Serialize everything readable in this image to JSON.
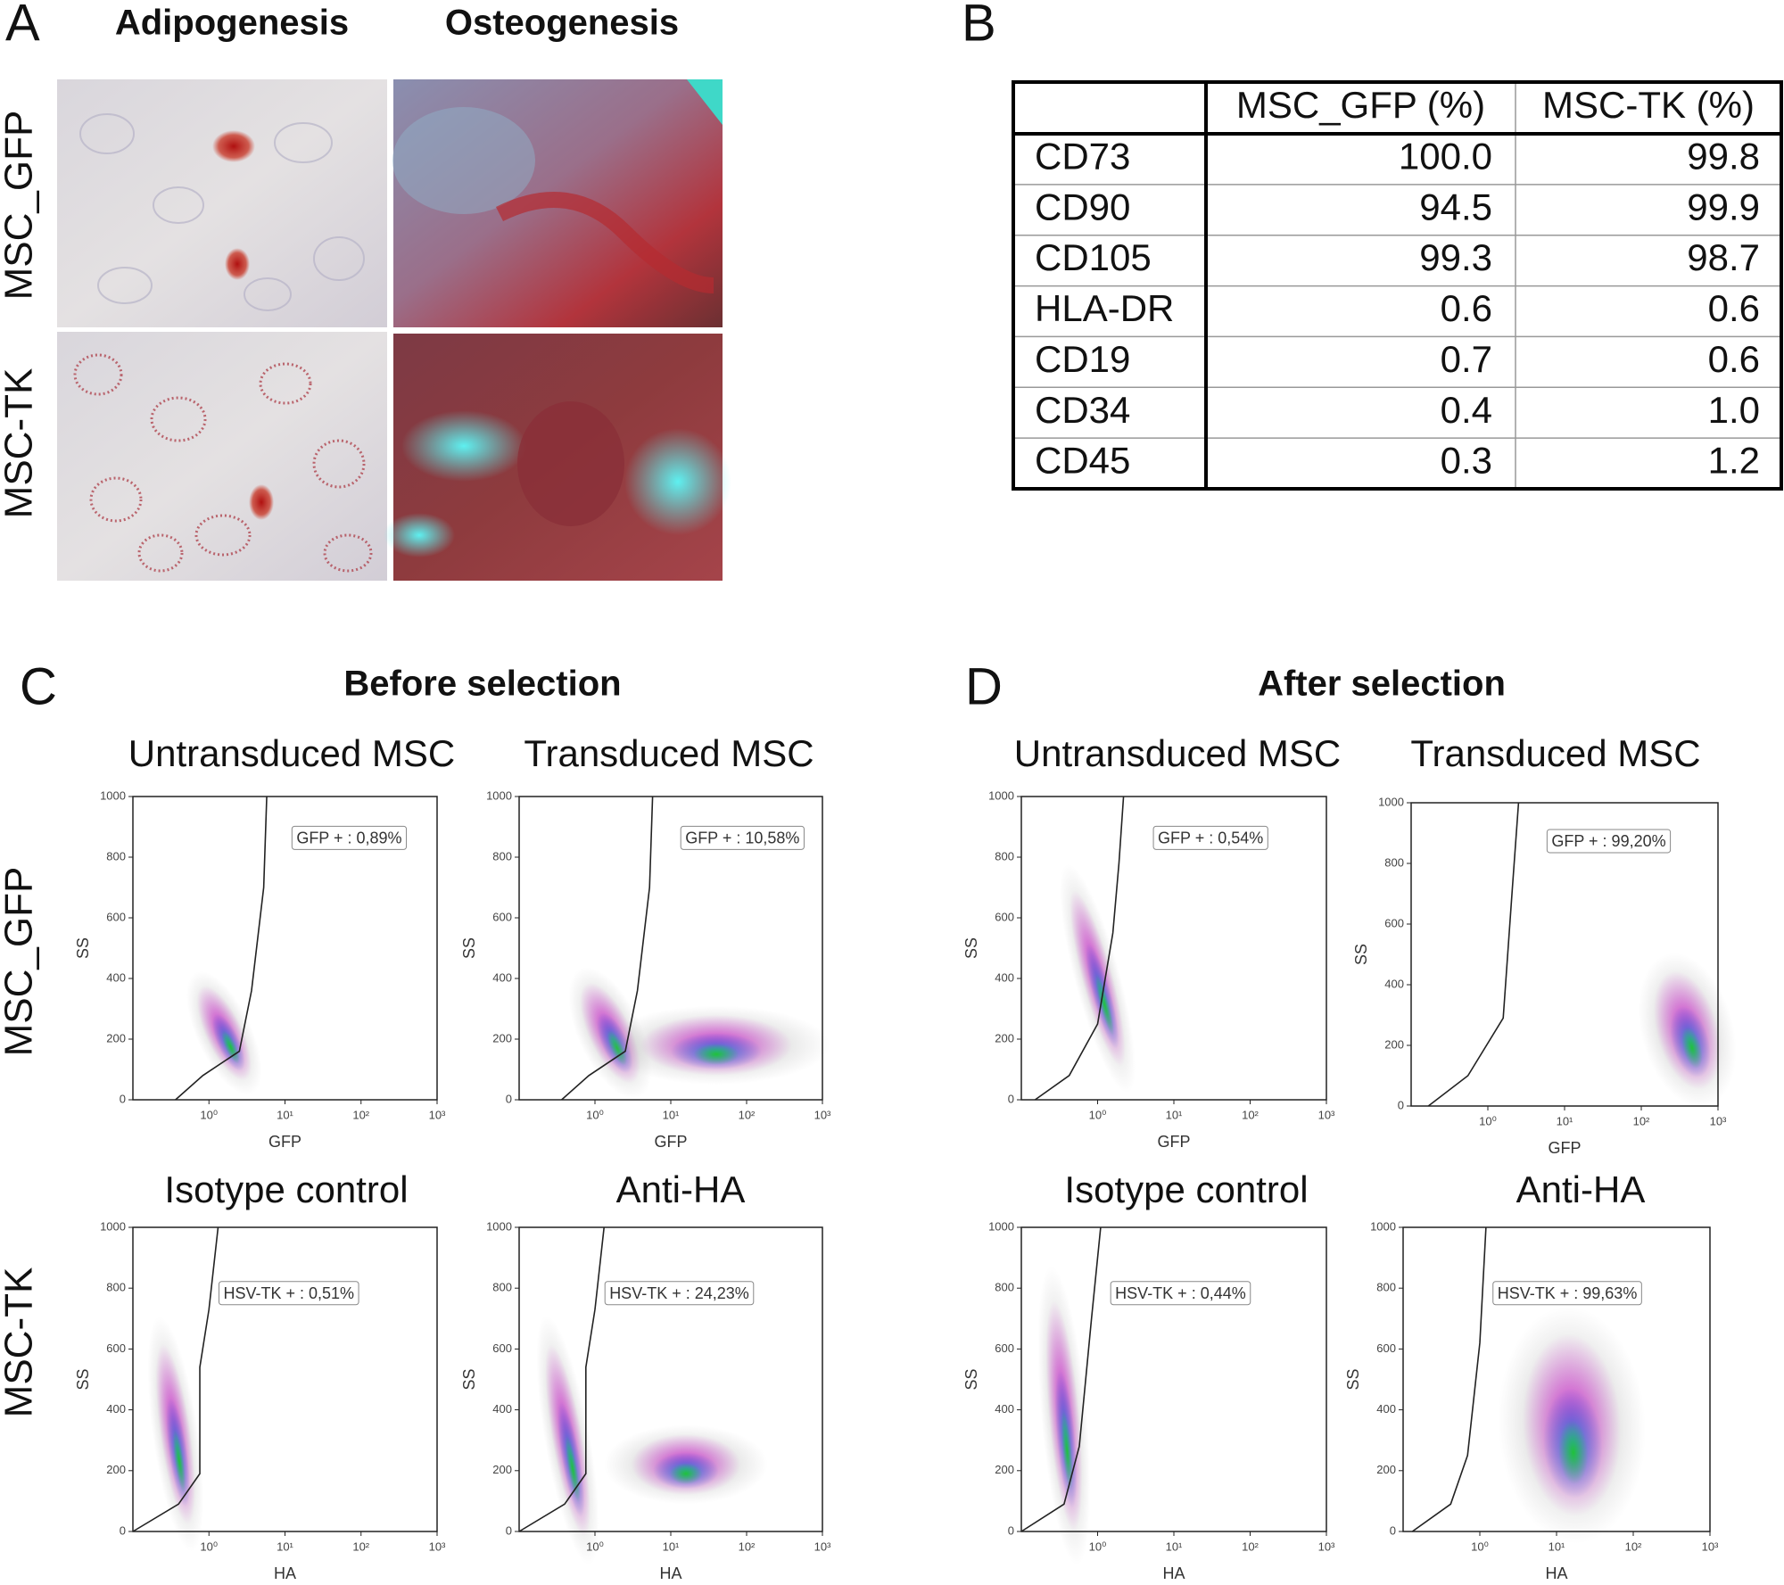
{
  "panel_a": {
    "label": "A",
    "columns": [
      "Adipogenesis",
      "Osteogenesis"
    ],
    "rows": [
      "MSC_GFP",
      "MSC-TK"
    ]
  },
  "panel_b": {
    "label": "B",
    "table": {
      "header": [
        "MSC_GFP (%)",
        "MSC-TK (%)"
      ],
      "rows": [
        [
          "CD73",
          "100.0",
          "99.8"
        ],
        [
          "CD90",
          "94.5",
          "99.9"
        ],
        [
          "CD105",
          "99.3",
          "98.7"
        ],
        [
          "HLA-DR",
          "0.6",
          "0.6"
        ],
        [
          "CD19",
          "0.7",
          "0.6"
        ],
        [
          "CD34",
          "0.4",
          "1.0"
        ],
        [
          "CD45",
          "0.3",
          "1.2"
        ]
      ]
    }
  },
  "flow_rows": [
    "MSC_GFP",
    "MSC-TK"
  ],
  "flow_axes": {
    "y_label": "SS",
    "ylim": [
      0,
      1000
    ],
    "yticks": [
      0,
      200,
      400,
      600,
      800,
      1000
    ],
    "log_x": true,
    "xlim": [
      0.1,
      1000
    ],
    "xticks": [
      {
        "value": 1,
        "label": "10⁰"
      },
      {
        "value": 10,
        "label": "10¹"
      },
      {
        "value": 100,
        "label": "10²"
      },
      {
        "value": 1000,
        "label": "10³"
      }
    ]
  },
  "panel_c": {
    "label": "C",
    "title": "Before selection",
    "plots": [
      {
        "title": "Untransduced MSC",
        "x_label": "GFP",
        "gate_label": "GFP + : 0,89%"
      },
      {
        "title": "Transduced MSC",
        "x_label": "GFP",
        "gate_label": "GFP + : 10,58%"
      },
      {
        "title": "Isotype control",
        "x_label": "HA",
        "gate_label": "HSV-TK + : 0,51%"
      },
      {
        "title": "Anti-HA",
        "x_label": "HA",
        "gate_label": "HSV-TK + : 24,23%"
      }
    ]
  },
  "panel_d": {
    "label": "D",
    "title": "After selection",
    "plots": [
      {
        "title": "Untransduced MSC",
        "x_label": "GFP",
        "gate_label": "GFP + : 0,54%"
      },
      {
        "title": "Transduced MSC",
        "x_label": "GFP",
        "gate_label": "GFP + : 99,20%"
      },
      {
        "title": "Isotype control",
        "x_label": "HA",
        "gate_label": "HSV-TK + : 0,44%"
      },
      {
        "title": "Anti-HA",
        "x_label": "HA",
        "gate_label": "HSV-TK + : 99,63%"
      }
    ]
  }
}
